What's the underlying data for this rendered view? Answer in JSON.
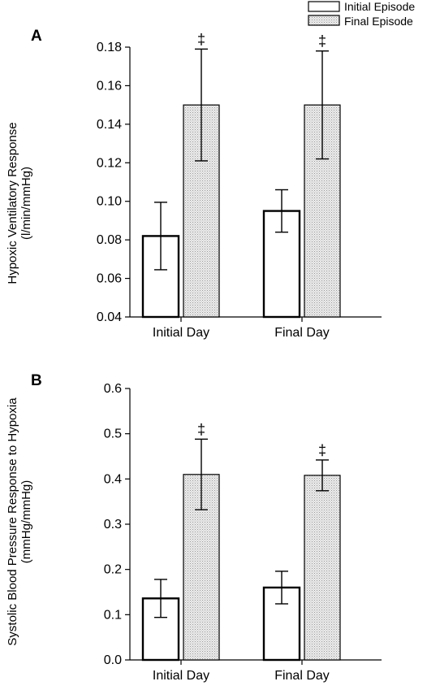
{
  "legend": {
    "entries": [
      "Initial Episode",
      "Final Episode"
    ]
  },
  "styles": {
    "bar_fill_initial": "#ffffff",
    "bar_fill_final": "#e6e6e6",
    "stroke": "#000000"
  },
  "chart_data": [
    {
      "panel": "A",
      "type": "bar",
      "categories": [
        "Initial Day",
        "Final Day"
      ],
      "ylabel": "Hypoxic Ventilatory Response",
      "ylabel_units": "(l/min/mmHg)",
      "ylim": [
        0.04,
        0.18
      ],
      "yticks": [
        "0.04",
        "0.06",
        "0.08",
        "0.10",
        "0.12",
        "0.14",
        "0.16",
        "0.18"
      ],
      "series": [
        {
          "name": "Initial Episode",
          "values": [
            0.082,
            0.095
          ],
          "err": [
            0.0175,
            0.011
          ]
        },
        {
          "name": "Final Episode",
          "values": [
            0.15,
            0.15
          ],
          "err": [
            0.029,
            0.028
          ]
        }
      ],
      "annotations": [
        "‡",
        "‡"
      ]
    },
    {
      "panel": "B",
      "type": "bar",
      "categories": [
        "Initial Day",
        "Final Day"
      ],
      "ylabel": "Systolic Blood Pressure Response to Hypoxia",
      "ylabel_units": "(mmHg/mmHg)",
      "ylim": [
        0.0,
        0.6
      ],
      "yticks": [
        "0.0",
        "0.1",
        "0.2",
        "0.3",
        "0.4",
        "0.5",
        "0.6"
      ],
      "series": [
        {
          "name": "Initial Episode",
          "values": [
            0.136,
            0.16
          ],
          "err": [
            0.042,
            0.036
          ]
        },
        {
          "name": "Final Episode",
          "values": [
            0.41,
            0.408
          ],
          "err": [
            0.078,
            0.034
          ]
        }
      ],
      "annotations": [
        "‡",
        "‡"
      ]
    }
  ]
}
